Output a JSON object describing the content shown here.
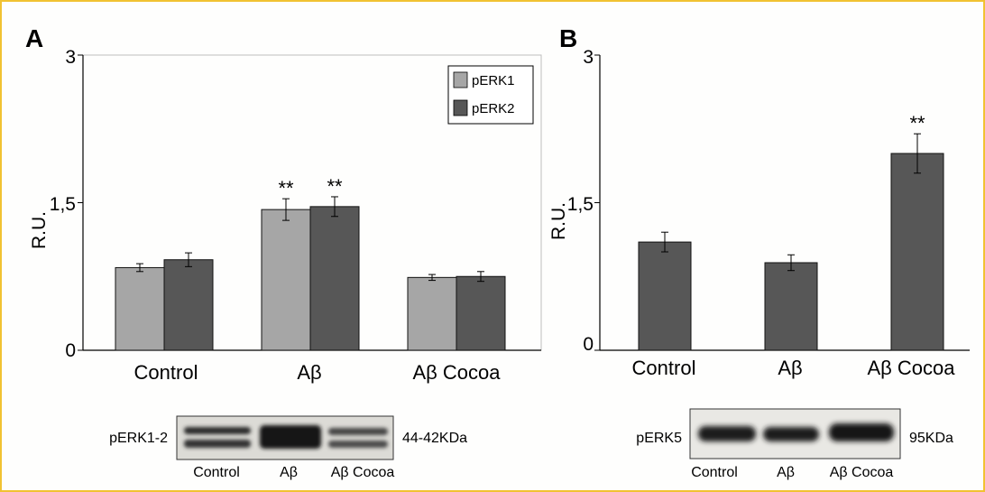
{
  "chart_data": [
    {
      "panel": "A",
      "type": "bar",
      "ylabel": "R.U.",
      "ylim": [
        0,
        3
      ],
      "yticks": [
        "0",
        "1,5",
        "3"
      ],
      "categories": [
        "Control",
        "Aβ",
        "Aβ Cocoa"
      ],
      "series": [
        {
          "name": "pERK1",
          "color": "#a6a6a6",
          "values": [
            0.84,
            1.43,
            0.74
          ],
          "errors": [
            0.04,
            0.11,
            0.03
          ]
        },
        {
          "name": "pERK2",
          "color": "#575757",
          "values": [
            0.92,
            1.46,
            0.75
          ],
          "errors": [
            0.07,
            0.1,
            0.05
          ]
        }
      ],
      "significance": [
        {
          "category": 1,
          "series": 0,
          "label": "**"
        },
        {
          "category": 1,
          "series": 1,
          "label": "**"
        }
      ],
      "legend": "top-right",
      "blot": {
        "label": "pERK1-2",
        "size": "44-42KDa",
        "lanes": [
          "Control",
          "Aβ",
          "Aβ Cocoa"
        ]
      }
    },
    {
      "panel": "B",
      "type": "bar",
      "ylabel": "R.U.",
      "ylim": [
        0,
        3
      ],
      "yticks": [
        "0",
        "1,5",
        "3"
      ],
      "categories": [
        "Control",
        "Aβ",
        "Aβ Cocoa"
      ],
      "series": [
        {
          "color": "#575757",
          "values": [
            1.1,
            0.89,
            2.0
          ],
          "errors": [
            0.1,
            0.08,
            0.2
          ]
        }
      ],
      "significance": [
        {
          "category": 2,
          "series": 0,
          "label": "**"
        }
      ],
      "blot": {
        "label": "pERK5",
        "size": "95KDa",
        "lanes": [
          "Control",
          "Aβ",
          "Aβ Cocoa"
        ]
      }
    }
  ]
}
